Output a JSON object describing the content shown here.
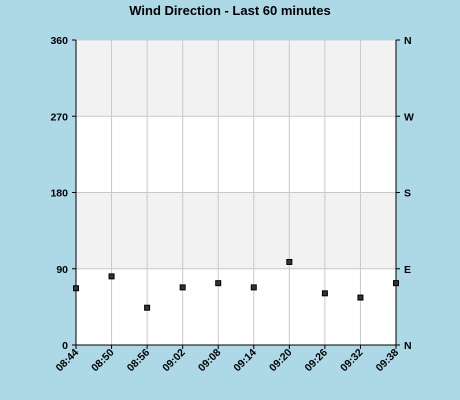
{
  "chart_data": {
    "type": "scatter",
    "title": "Wind Direction - Last 60 minutes",
    "x_ticks": [
      "08:44",
      "08:50",
      "08:56",
      "09:02",
      "09:08",
      "09:14",
      "09:20",
      "09:26",
      "09:32",
      "09:38"
    ],
    "y_ticks": [
      0,
      90,
      180,
      270,
      360
    ],
    "y_right_labels": [
      "N",
      "E",
      "S",
      "W",
      "N"
    ],
    "ylim": [
      0,
      360
    ],
    "grid": true,
    "points": [
      {
        "x": "08:44",
        "y": 67
      },
      {
        "x": "08:50",
        "y": 81
      },
      {
        "x": "08:56",
        "y": 44
      },
      {
        "x": "09:02",
        "y": 68
      },
      {
        "x": "09:08",
        "y": 73
      },
      {
        "x": "09:14",
        "y": 68
      },
      {
        "x": "09:20",
        "y": 98
      },
      {
        "x": "09:26",
        "y": 61
      },
      {
        "x": "09:32",
        "y": 56
      },
      {
        "x": "09:38",
        "y": 73
      }
    ],
    "bands": [
      {
        "from": 0,
        "to": 90,
        "color": "#ffffff"
      },
      {
        "from": 90,
        "to": 180,
        "color": "#f2f2f2"
      },
      {
        "from": 180,
        "to": 270,
        "color": "#ffffff"
      },
      {
        "from": 270,
        "to": 360,
        "color": "#f2f2f2"
      }
    ],
    "colors": {
      "background": "#add8e6",
      "grid": "#c8c8c8",
      "marker_fill": "#333333",
      "marker_stroke": "#000000",
      "axis": "#000000"
    }
  }
}
